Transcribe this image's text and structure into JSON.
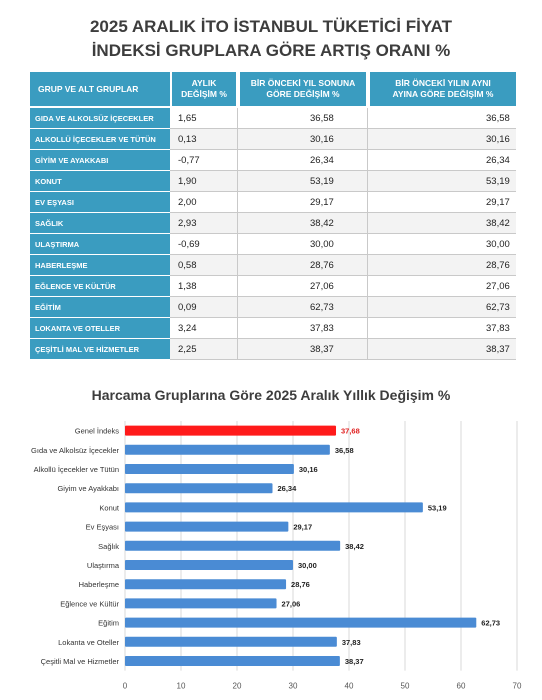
{
  "page": {
    "title_line1": "2025 ARALIK İTO İSTANBUL TÜKETİCİ FİYAT",
    "title_line2": "İNDEKSİ GRUPLARA GÖRE ARTIŞ ORANI %"
  },
  "table": {
    "headers": {
      "group": "GRUP VE ALT GRUPLAR",
      "monthly_l1": "AYLIK",
      "monthly_l2": "DEĞİŞİM %",
      "ytd_l1": "BİR ÖNCEKİ YIL SONUNA",
      "ytd_l2": "GÖRE DEĞİŞİM %",
      "yoy_l1": "BİR ÖNCEKİ YILIN AYNI",
      "yoy_l2": "AYINA GÖRE DEĞİŞİM %"
    },
    "rows": [
      {
        "group": "GIDA VE ALKOLSÜZ İÇECEKLER",
        "monthly": "1,65",
        "ytd": "36,58",
        "yoy": "36,58"
      },
      {
        "group": "ALKOLLÜ İÇECEKLER VE TÜTÜN",
        "monthly": "0,13",
        "ytd": "30,16",
        "yoy": "30,16"
      },
      {
        "group": "GİYİM VE AYAKKABI",
        "monthly": "-0,77",
        "ytd": "26,34",
        "yoy": "26,34"
      },
      {
        "group": "KONUT",
        "monthly": "1,90",
        "ytd": "53,19",
        "yoy": "53,19"
      },
      {
        "group": "EV EŞYASI",
        "monthly": "2,00",
        "ytd": "29,17",
        "yoy": "29,17"
      },
      {
        "group": "SAĞLIK",
        "monthly": "2,93",
        "ytd": "38,42",
        "yoy": "38,42"
      },
      {
        "group": "ULAŞTIRMA",
        "monthly": "-0,69",
        "ytd": "30,00",
        "yoy": "30,00"
      },
      {
        "group": "HABERLEŞME",
        "monthly": "0,58",
        "ytd": "28,76",
        "yoy": "28,76"
      },
      {
        "group": "EĞLENCE VE KÜLTÜR",
        "monthly": "1,38",
        "ytd": "27,06",
        "yoy": "27,06"
      },
      {
        "group": "EĞİTİM",
        "monthly": "0,09",
        "ytd": "62,73",
        "yoy": "62,73"
      },
      {
        "group": "LOKANTA VE OTELLER",
        "monthly": "3,24",
        "ytd": "37,83",
        "yoy": "37,83"
      },
      {
        "group": "ÇEŞİTLİ MAL VE HİZMETLER",
        "monthly": "2,25",
        "ytd": "38,37",
        "yoy": "38,37"
      }
    ]
  },
  "chart_data": {
    "type": "bar",
    "orientation": "horizontal",
    "title": "Harcama Gruplarına Göre 2025 Aralık Yıllık Değişim %",
    "categories": [
      "Genel İndeks",
      "Gıda ve Alkolsüz İçecekler",
      "Alkollü İçecekler ve Tütün",
      "Giyim ve Ayakkabı",
      "Konut",
      "Ev Eşyası",
      "Sağlık",
      "Ulaştırma",
      "Haberleşme",
      "Eğlence ve Kültür",
      "Eğitim",
      "Lokanta ve Oteller",
      "Çeşitli Mal ve Hizmetler"
    ],
    "values": [
      37.68,
      36.58,
      30.16,
      26.34,
      53.19,
      29.17,
      38.42,
      30.0,
      28.76,
      27.06,
      62.73,
      37.83,
      38.37
    ],
    "value_labels": [
      "37,68",
      "36,58",
      "30,16",
      "26,34",
      "53,19",
      "29,17",
      "38,42",
      "30,00",
      "28,76",
      "27,06",
      "62,73",
      "37,83",
      "38,37"
    ],
    "xlim": [
      0,
      70
    ],
    "xticks": [
      0,
      10,
      20,
      30,
      40,
      50,
      60,
      70
    ],
    "grid": true,
    "colors": {
      "default": "#4a8bd4",
      "highlight": "#ff1a1a",
      "highlight_label": "#e02020"
    },
    "highlight_index": 0
  }
}
